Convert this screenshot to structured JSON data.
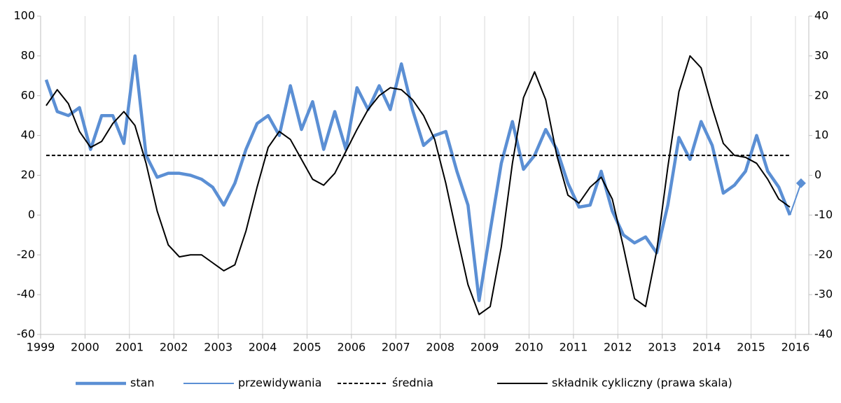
{
  "chart_data": {
    "type": "line",
    "xlim": [
      1999,
      2016.3
    ],
    "xticks": [
      1999,
      2000,
      2001,
      2002,
      2003,
      2004,
      2005,
      2006,
      2007,
      2008,
      2009,
      2010,
      2011,
      2012,
      2013,
      2014,
      2015,
      2016
    ],
    "ylim": [
      -60,
      100
    ],
    "yticks": [
      -60,
      -40,
      -20,
      0,
      20,
      40,
      60,
      80,
      100
    ],
    "y2lim": [
      -40,
      40
    ],
    "y2ticks": [
      -40,
      -30,
      -20,
      -10,
      0,
      10,
      20,
      30,
      40
    ],
    "grid": true,
    "series": [
      {
        "name": "stan",
        "color": "#5b8fd4",
        "line_width": 4.5,
        "x": [
          1999.125,
          1999.375,
          1999.625,
          1999.875,
          2000.125,
          2000.375,
          2000.625,
          2000.875,
          2001.125,
          2001.375,
          2001.625,
          2001.875,
          2002.125,
          2002.375,
          2002.625,
          2002.875,
          2003.125,
          2003.375,
          2003.625,
          2003.875,
          2004.125,
          2004.375,
          2004.625,
          2004.875,
          2005.125,
          2005.375,
          2005.625,
          2005.875,
          2006.125,
          2006.375,
          2006.625,
          2006.875,
          2007.125,
          2007.375,
          2007.625,
          2007.875,
          2008.125,
          2008.375,
          2008.625,
          2008.875,
          2009.125,
          2009.375,
          2009.625,
          2009.875,
          2010.125,
          2010.375,
          2010.625,
          2010.875,
          2011.125,
          2011.375,
          2011.625,
          2011.875,
          2012.125,
          2012.375,
          2012.625,
          2012.875,
          2013.125,
          2013.375,
          2013.625,
          2013.875,
          2014.125,
          2014.375,
          2014.625,
          2014.875,
          2015.125,
          2015.375,
          2015.625,
          2015.875
        ],
        "values": [
          68,
          52,
          50,
          54,
          33,
          50,
          50,
          36,
          80,
          30,
          19,
          21,
          21,
          20,
          18,
          14,
          5,
          16,
          33,
          46,
          50,
          40,
          65,
          43,
          57,
          33,
          52,
          33,
          64,
          53,
          65,
          53,
          76,
          53,
          35,
          40,
          42,
          22,
          5,
          -43,
          -8,
          26,
          47,
          23,
          30,
          43,
          33,
          16,
          4,
          5,
          22,
          2,
          -10,
          -14,
          -11,
          -19,
          5,
          39,
          28,
          47,
          35,
          11,
          15,
          22,
          40,
          22,
          14,
          0
        ]
      },
      {
        "name": "przewidywania",
        "color": "#5b8fd4",
        "line_width": 2,
        "marker": "diamond",
        "x": [
          2015.875,
          2016.125
        ],
        "values": [
          0,
          16
        ]
      },
      {
        "name": "średnia",
        "color": "#000000",
        "line_width": 2,
        "dash": true,
        "x": [
          1999.125,
          2015.875
        ],
        "values": [
          30,
          30
        ]
      },
      {
        "name": "składnik cykliczny (prawa skala)",
        "color": "#000000",
        "line_width": 2,
        "axis": "y2",
        "x": [
          1999.125,
          1999.375,
          1999.625,
          1999.875,
          2000.125,
          2000.375,
          2000.625,
          2000.875,
          2001.125,
          2001.375,
          2001.625,
          2001.875,
          2002.125,
          2002.375,
          2002.625,
          2002.875,
          2003.125,
          2003.375,
          2003.625,
          2003.875,
          2004.125,
          2004.375,
          2004.625,
          2004.875,
          2005.125,
          2005.375,
          2005.625,
          2005.875,
          2006.125,
          2006.375,
          2006.625,
          2006.875,
          2007.125,
          2007.375,
          2007.625,
          2007.875,
          2008.125,
          2008.375,
          2008.625,
          2008.875,
          2009.125,
          2009.375,
          2009.625,
          2009.875,
          2010.125,
          2010.375,
          2010.625,
          2010.875,
          2011.125,
          2011.375,
          2011.625,
          2011.875,
          2012.125,
          2012.375,
          2012.625,
          2012.875,
          2013.125,
          2013.375,
          2013.625,
          2013.875,
          2014.125,
          2014.375,
          2014.625,
          2014.875,
          2015.125,
          2015.375,
          2015.625,
          2015.875
        ],
        "values": [
          17.5,
          21.5,
          18,
          11,
          7,
          8.5,
          13,
          16,
          12.5,
          3,
          -9,
          -17.5,
          -20.5,
          -20,
          -20,
          -22,
          -24,
          -22.5,
          -14,
          -3,
          7,
          11,
          9,
          4,
          -1,
          -2.5,
          0.5,
          6,
          11.5,
          16.5,
          20,
          22,
          21.5,
          19,
          15,
          9,
          -2,
          -15,
          -27.5,
          -35,
          -33,
          -18,
          3,
          19.5,
          26,
          19,
          5,
          -5,
          -7,
          -3,
          -0.5,
          -6,
          -18,
          -31,
          -33,
          -19,
          2,
          21,
          30,
          27,
          17,
          8,
          5,
          4.5,
          3,
          -1,
          -6,
          -8
        ]
      }
    ]
  }
}
